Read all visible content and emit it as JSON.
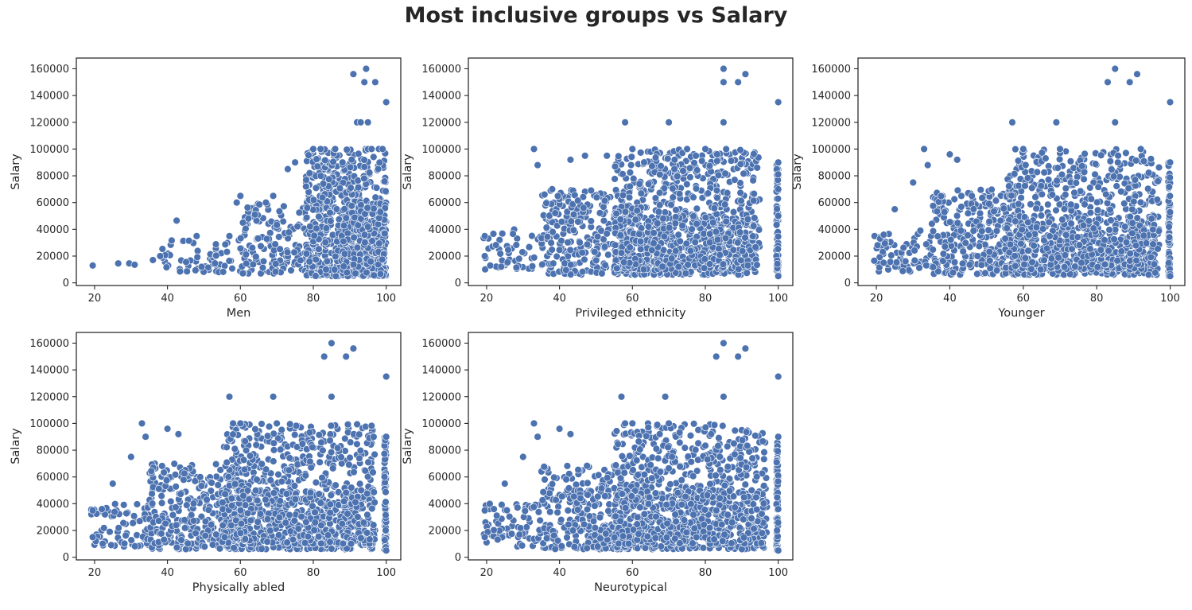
{
  "figure": {
    "title": "Most inclusive groups vs Salary"
  },
  "chart_data": [
    {
      "type": "scatter",
      "xlabel": "Men",
      "ylabel": "Salary",
      "xlim": [
        15,
        104
      ],
      "ylim": [
        -2000,
        168000
      ],
      "xticks": [
        20,
        40,
        60,
        80,
        100
      ],
      "yticks": [
        0,
        20000,
        40000,
        60000,
        80000,
        100000,
        120000,
        140000,
        160000
      ],
      "marker_color": "#4c72b0",
      "grid": false,
      "highlights": [
        [
          19.5,
          13000
        ],
        [
          26.5,
          14500
        ],
        [
          29.5,
          14500
        ],
        [
          31,
          13500
        ],
        [
          36,
          17000
        ],
        [
          38,
          20000
        ],
        [
          42.5,
          46500
        ],
        [
          48,
          35000
        ],
        [
          57,
          35000
        ],
        [
          59,
          60000
        ],
        [
          60,
          65000
        ],
        [
          64,
          51000
        ],
        [
          67,
          60000
        ],
        [
          69,
          65000
        ],
        [
          73,
          85000
        ],
        [
          75,
          90000
        ],
        [
          78,
          72000
        ],
        [
          80,
          100000
        ],
        [
          82,
          100000
        ],
        [
          86,
          100000
        ],
        [
          91,
          156000
        ],
        [
          92,
          120000
        ],
        [
          93,
          120000
        ],
        [
          94,
          150000
        ],
        [
          94.5,
          160000
        ],
        [
          95,
          120000
        ],
        [
          96,
          100000
        ],
        [
          97,
          150000
        ],
        [
          98,
          100000
        ],
        [
          100,
          135000
        ],
        [
          99,
          100000
        ],
        [
          88,
          90000
        ]
      ],
      "bulk": [
        {
          "x": [
            38,
            60
          ],
          "y": [
            8000,
            32000
          ],
          "n": 60
        },
        {
          "x": [
            60,
            80
          ],
          "y": [
            7000,
            60000
          ],
          "n": 170
        },
        {
          "x": [
            78,
            100
          ],
          "y": [
            5000,
            100000
          ],
          "n": 600
        },
        {
          "x": [
            88,
            100
          ],
          "y": [
            5000,
            60000
          ],
          "n": 300
        }
      ]
    },
    {
      "type": "scatter",
      "xlabel": "Privileged ethnicity",
      "ylabel": "Salary",
      "xlim": [
        15,
        104
      ],
      "ylim": [
        -2000,
        168000
      ],
      "xticks": [
        20,
        40,
        60,
        80,
        100
      ],
      "yticks": [
        0,
        20000,
        40000,
        60000,
        80000,
        100000,
        120000,
        140000,
        160000
      ],
      "marker_color": "#4c72b0",
      "grid": false,
      "highlights": [
        [
          19.5,
          35000
        ],
        [
          19.5,
          20000
        ],
        [
          21,
          13000
        ],
        [
          24,
          12000
        ],
        [
          33,
          100000
        ],
        [
          34,
          88000
        ],
        [
          38,
          70000
        ],
        [
          43,
          92000
        ],
        [
          47,
          95000
        ],
        [
          53,
          95000
        ],
        [
          58,
          120000
        ],
        [
          60,
          100000
        ],
        [
          70,
          120000
        ],
        [
          75,
          100000
        ],
        [
          80,
          100000
        ],
        [
          85,
          160000
        ],
        [
          85,
          150000
        ],
        [
          85,
          120000
        ],
        [
          89,
          150000
        ],
        [
          91,
          156000
        ],
        [
          100,
          135000
        ],
        [
          100,
          90000
        ],
        [
          100,
          5000
        ],
        [
          100,
          50000
        ],
        [
          100,
          70000
        ]
      ],
      "bulk": [
        {
          "x": [
            19,
            35
          ],
          "y": [
            10000,
            40000
          ],
          "n": 50
        },
        {
          "x": [
            35,
            60
          ],
          "y": [
            6000,
            70000
          ],
          "n": 280
        },
        {
          "x": [
            55,
            95
          ],
          "y": [
            6000,
            100000
          ],
          "n": 700
        },
        {
          "x": [
            55,
            95
          ],
          "y": [
            10000,
            50000
          ],
          "n": 300
        },
        {
          "x": [
            99.5,
            100
          ],
          "y": [
            5000,
            90000
          ],
          "n": 80
        }
      ]
    },
    {
      "type": "scatter",
      "xlabel": "Younger",
      "ylabel": "Salary",
      "xlim": [
        15,
        104
      ],
      "ylim": [
        -2000,
        168000
      ],
      "xticks": [
        20,
        40,
        60,
        80,
        100
      ],
      "yticks": [
        0,
        20000,
        40000,
        60000,
        80000,
        100000,
        120000,
        140000,
        160000
      ],
      "marker_color": "#4c72b0",
      "grid": false,
      "highlights": [
        [
          19.5,
          35000
        ],
        [
          21,
          33000
        ],
        [
          22,
          36000
        ],
        [
          25,
          55000
        ],
        [
          30,
          75000
        ],
        [
          33,
          100000
        ],
        [
          34,
          88000
        ],
        [
          40,
          96000
        ],
        [
          42,
          92000
        ],
        [
          46,
          65000
        ],
        [
          57,
          120000
        ],
        [
          60,
          100000
        ],
        [
          69,
          120000
        ],
        [
          70,
          100000
        ],
        [
          83,
          150000
        ],
        [
          85,
          160000
        ],
        [
          85,
          120000
        ],
        [
          89,
          150000
        ],
        [
          91,
          156000
        ],
        [
          100,
          135000
        ],
        [
          100,
          90000
        ],
        [
          100,
          5000
        ],
        [
          92,
          100000
        ]
      ],
      "bulk": [
        {
          "x": [
            19,
            35
          ],
          "y": [
            8000,
            40000
          ],
          "n": 70
        },
        {
          "x": [
            35,
            60
          ],
          "y": [
            6000,
            70000
          ],
          "n": 300
        },
        {
          "x": [
            55,
            97
          ],
          "y": [
            6000,
            100000
          ],
          "n": 650
        },
        {
          "x": [
            55,
            97
          ],
          "y": [
            10000,
            50000
          ],
          "n": 300
        },
        {
          "x": [
            99.5,
            100
          ],
          "y": [
            5000,
            90000
          ],
          "n": 80
        }
      ]
    },
    {
      "type": "scatter",
      "xlabel": "Physically abled",
      "ylabel": "Salary",
      "xlim": [
        15,
        104
      ],
      "ylim": [
        -2000,
        168000
      ],
      "xticks": [
        20,
        40,
        60,
        80,
        100
      ],
      "yticks": [
        0,
        20000,
        40000,
        60000,
        80000,
        100000,
        120000,
        140000,
        160000
      ],
      "marker_color": "#4c72b0",
      "grid": false,
      "highlights": [
        [
          19.5,
          35000
        ],
        [
          19.5,
          15000
        ],
        [
          22,
          36000
        ],
        [
          25,
          55000
        ],
        [
          30,
          75000
        ],
        [
          33,
          100000
        ],
        [
          34,
          90000
        ],
        [
          40,
          96000
        ],
        [
          43,
          92000
        ],
        [
          57,
          120000
        ],
        [
          58,
          100000
        ],
        [
          60,
          100000
        ],
        [
          69,
          120000
        ],
        [
          70,
          100000
        ],
        [
          83,
          150000
        ],
        [
          85,
          160000
        ],
        [
          85,
          120000
        ],
        [
          89,
          150000
        ],
        [
          91,
          156000
        ],
        [
          100,
          135000
        ],
        [
          100,
          90000
        ],
        [
          100,
          5000
        ]
      ],
      "bulk": [
        {
          "x": [
            19,
            35
          ],
          "y": [
            8000,
            40000
          ],
          "n": 70
        },
        {
          "x": [
            35,
            60
          ],
          "y": [
            6000,
            70000
          ],
          "n": 300
        },
        {
          "x": [
            55,
            97
          ],
          "y": [
            6000,
            100000
          ],
          "n": 650
        },
        {
          "x": [
            55,
            97
          ],
          "y": [
            10000,
            50000
          ],
          "n": 300
        },
        {
          "x": [
            99.5,
            100
          ],
          "y": [
            5000,
            90000
          ],
          "n": 80
        }
      ]
    },
    {
      "type": "scatter",
      "xlabel": "Neurotypical",
      "ylabel": "Salary",
      "xlim": [
        15,
        104
      ],
      "ylim": [
        -2000,
        168000
      ],
      "xticks": [
        20,
        40,
        60,
        80,
        100
      ],
      "yticks": [
        0,
        20000,
        40000,
        60000,
        80000,
        100000,
        120000,
        140000,
        160000
      ],
      "marker_color": "#4c72b0",
      "grid": false,
      "highlights": [
        [
          19.5,
          35000
        ],
        [
          19.5,
          15000
        ],
        [
          22,
          36000
        ],
        [
          25,
          55000
        ],
        [
          30,
          75000
        ],
        [
          33,
          100000
        ],
        [
          34,
          90000
        ],
        [
          40,
          96000
        ],
        [
          43,
          92000
        ],
        [
          57,
          120000
        ],
        [
          58,
          100000
        ],
        [
          60,
          100000
        ],
        [
          69,
          120000
        ],
        [
          70,
          100000
        ],
        [
          83,
          150000
        ],
        [
          85,
          160000
        ],
        [
          85,
          120000
        ],
        [
          89,
          150000
        ],
        [
          91,
          156000
        ],
        [
          100,
          135000
        ],
        [
          100,
          90000
        ],
        [
          100,
          5000
        ]
      ],
      "bulk": [
        {
          "x": [
            19,
            35
          ],
          "y": [
            8000,
            40000
          ],
          "n": 70
        },
        {
          "x": [
            35,
            60
          ],
          "y": [
            6000,
            70000
          ],
          "n": 300
        },
        {
          "x": [
            55,
            97
          ],
          "y": [
            6000,
            100000
          ],
          "n": 650
        },
        {
          "x": [
            55,
            97
          ],
          "y": [
            10000,
            50000
          ],
          "n": 300
        },
        {
          "x": [
            99.5,
            100
          ],
          "y": [
            5000,
            90000
          ],
          "n": 80
        }
      ]
    }
  ]
}
